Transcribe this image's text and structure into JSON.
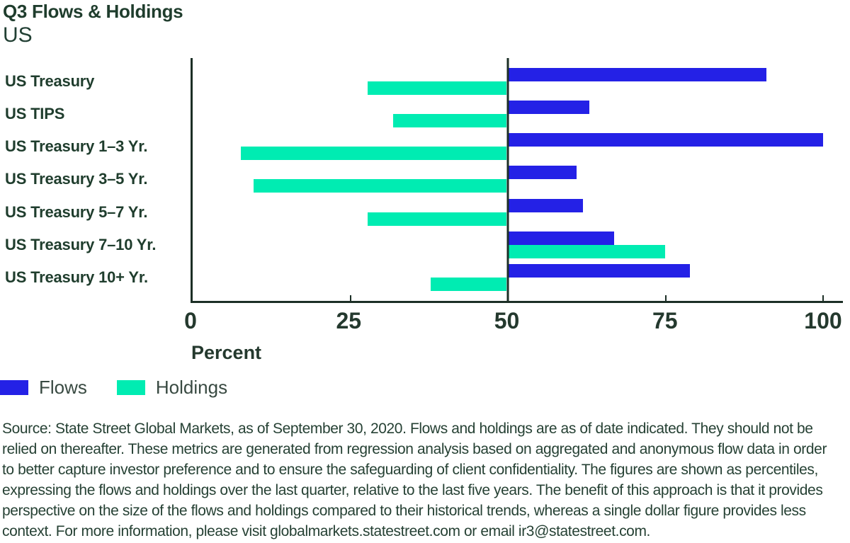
{
  "header": {
    "title": "Q3 Flows & Holdings",
    "subtitle": "US"
  },
  "chart_data": {
    "type": "bar",
    "orientation": "horizontal",
    "title": "Q3 Flows & Holdings",
    "subtitle": "US",
    "categories": [
      "US Treasury",
      "US TIPS",
      "US Treasury 1–3 Yr.",
      "US Treasury 3–5 Yr.",
      "US Treasury 5–7 Yr.",
      "US Treasury 7–10 Yr.",
      "US Treasury 10+ Yr."
    ],
    "series": [
      {
        "name": "Flows",
        "color": "#2421e6",
        "values": [
          91,
          63,
          100,
          61,
          62,
          67,
          79
        ]
      },
      {
        "name": "Holdings",
        "color": "#00ecb2",
        "values": [
          28,
          32,
          8,
          10,
          28,
          75,
          38
        ]
      }
    ],
    "baseline": 50,
    "xlabel": "Percent",
    "xlim": [
      0,
      100
    ],
    "xticks": [
      0,
      25,
      50,
      75,
      100
    ],
    "grid": false,
    "legend_position": "bottom-left"
  },
  "legend": {
    "items": [
      {
        "label": "Flows",
        "color": "#2421e6"
      },
      {
        "label": "Holdings",
        "color": "#00ecb2"
      }
    ]
  },
  "footer": {
    "source": "Source: State Street Global Markets, as of September 30, 2020. Flows and holdings are as of date indicated. They should not be relied on thereafter. These metrics are generated from regression analysis based on aggregated and anonymous flow data in order to better capture investor preference and to ensure the safeguarding of client confidentiality. The figures are shown as percentiles, expressing the flows and holdings over the last quarter, relative to the last five years. The benefit of this approach is that it provides perspective on the size of the flows and holdings compared to their historical trends, whereas a single dollar figure provides less context. For more information, please visit globalmarkets.statestreet.com or email ir3@statestreet.com."
  },
  "colors": {
    "flows": "#2421e6",
    "holdings": "#00ecb2",
    "text": "#1f3d2d",
    "axis": "#1c2f26"
  }
}
